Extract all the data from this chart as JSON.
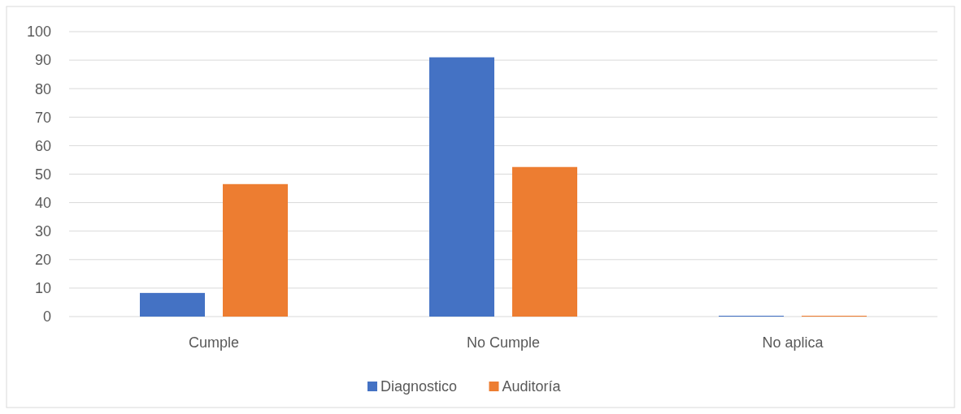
{
  "chart_data": {
    "type": "bar",
    "categories": [
      "Cumple",
      "No Cumple",
      "No aplica"
    ],
    "series": [
      {
        "name": "Diagnostico",
        "color": "#4472c4",
        "values": [
          8.3,
          91,
          0.3
        ]
      },
      {
        "name": "Auditoría",
        "color": "#ed7d31",
        "values": [
          46.5,
          52.5,
          0.3
        ]
      }
    ],
    "ylim": [
      0,
      100
    ],
    "yticks": [
      0,
      10,
      20,
      30,
      40,
      50,
      60,
      70,
      80,
      90,
      100
    ],
    "grid": "y",
    "legend": "bottom"
  }
}
